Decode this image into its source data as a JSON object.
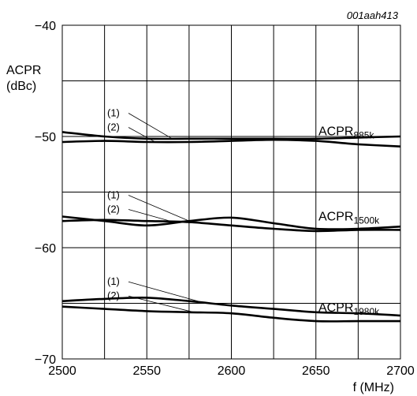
{
  "figure_code": "001aah413",
  "chart_data": {
    "type": "line",
    "xlabel": "f (MHz)",
    "ylabel": "ACPR",
    "ylabel_unit": "(dBc)",
    "xlim": [
      2500,
      2700
    ],
    "ylim": [
      -70,
      -40
    ],
    "x_ticks": [
      "2500",
      "2550",
      "2600",
      "2650",
      "2700"
    ],
    "y_ticks": [
      "−40",
      "−50",
      "−60",
      "−70"
    ],
    "grid": true,
    "series": [
      {
        "group": "885k",
        "curve": "(1)",
        "x": [
          2500,
          2525,
          2550,
          2575,
          2600,
          2625,
          2650,
          2675,
          2700
        ],
        "y": [
          -49.6,
          -50.0,
          -50.2,
          -50.2,
          -50.2,
          -50.2,
          -50.2,
          -50.1,
          -50.0
        ]
      },
      {
        "group": "885k",
        "curve": "(2)",
        "x": [
          2500,
          2525,
          2550,
          2575,
          2600,
          2625,
          2650,
          2675,
          2700
        ],
        "y": [
          -50.5,
          -50.4,
          -50.5,
          -50.5,
          -50.4,
          -50.3,
          -50.4,
          -50.7,
          -50.9
        ]
      },
      {
        "group": "1500k",
        "curve": "(1)",
        "x": [
          2500,
          2525,
          2550,
          2575,
          2600,
          2625,
          2650,
          2675,
          2700
        ],
        "y": [
          -57.2,
          -57.6,
          -58.0,
          -57.6,
          -57.3,
          -57.8,
          -58.3,
          -58.3,
          -58.1
        ]
      },
      {
        "group": "1500k",
        "curve": "(2)",
        "x": [
          2500,
          2525,
          2550,
          2575,
          2600,
          2625,
          2650,
          2675,
          2700
        ],
        "y": [
          -57.6,
          -57.5,
          -57.6,
          -57.7,
          -58.0,
          -58.3,
          -58.5,
          -58.4,
          -58.4
        ]
      },
      {
        "group": "1980k",
        "curve": "(1)",
        "x": [
          2500,
          2525,
          2550,
          2575,
          2600,
          2625,
          2650,
          2675,
          2700
        ],
        "y": [
          -64.8,
          -64.6,
          -64.5,
          -64.8,
          -65.2,
          -65.5,
          -65.8,
          -65.9,
          -66.1
        ]
      },
      {
        "group": "1980k",
        "curve": "(2)",
        "x": [
          2500,
          2525,
          2550,
          2575,
          2600,
          2625,
          2650,
          2675,
          2700
        ],
        "y": [
          -65.3,
          -65.5,
          -65.7,
          -65.8,
          -65.9,
          -66.3,
          -66.6,
          -66.6,
          -66.6
        ]
      }
    ],
    "annotations": [
      {
        "group": "885k",
        "main": "ACPR",
        "sub": "885k",
        "leader_1": "(1)",
        "leader_2": "(2)",
        "target_x_1": 2565,
        "target_x_2": 2555
      },
      {
        "group": "1500k",
        "main": "ACPR",
        "sub": "1500k",
        "leader_1": "(1)",
        "leader_2": "(2)",
        "target_x_1": 2575,
        "target_x_2": 2565
      },
      {
        "group": "1980k",
        "main": "ACPR",
        "sub": "1980k",
        "leader_1": "(1)",
        "leader_2": "(2)",
        "target_x_1": 2583,
        "target_x_2": 2578
      }
    ]
  }
}
